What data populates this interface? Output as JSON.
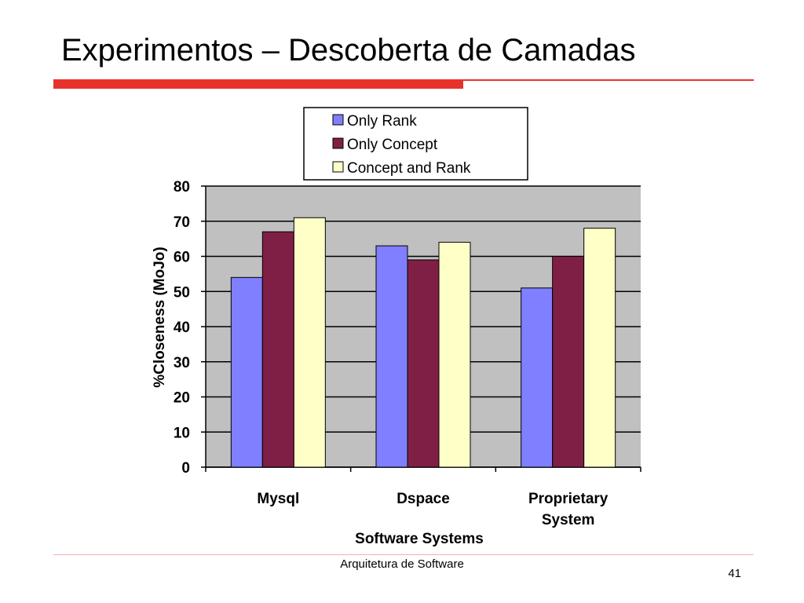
{
  "slide": {
    "title": "Experimentos – Descoberta de Camadas",
    "footer": "Arquitetura de Software",
    "page_number": "41",
    "accent_color": "#e8312a"
  },
  "chart_data": {
    "type": "bar",
    "categories": [
      "Mysql",
      "Dspace",
      "Proprietary System"
    ],
    "series": [
      {
        "name": "Only Rank",
        "values": [
          54,
          63,
          51
        ],
        "color": "#7f7fff"
      },
      {
        "name": "Only Concept",
        "values": [
          67,
          59,
          60
        ],
        "color": "#7f1f45"
      },
      {
        "name": "Concept and Rank",
        "values": [
          71,
          64,
          68
        ],
        "color": "#ffffc8"
      }
    ],
    "xlabel": "Software Systems",
    "ylabel": "%Closeness (MoJo)",
    "ylim": [
      0,
      80
    ],
    "yticks": [
      0,
      10,
      20,
      30,
      40,
      50,
      60,
      70,
      80
    ],
    "grid": true,
    "plot_background": "#c0c0c0",
    "legend_position": "top"
  }
}
